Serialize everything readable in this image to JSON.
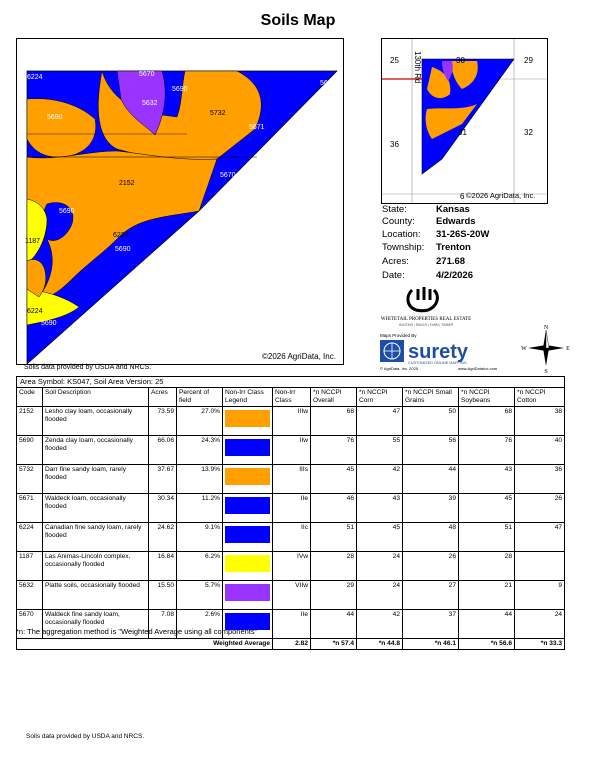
{
  "title": "Soils Map",
  "map": {
    "copyright": "©2026 AgriData, Inc.",
    "source": "Soils data provided by USDA and NRCS.",
    "labels": [
      "6224",
      "5670",
      "5690",
      "5632",
      "5632",
      "5690",
      "5732",
      "5671",
      "2152",
      "5670",
      "5690",
      "1187",
      "6224",
      "5690",
      "6224",
      "5690"
    ]
  },
  "inset": {
    "copyright": "©2026 AgriData, Inc.",
    "sections": [
      "25",
      "30",
      "29",
      "36",
      "31",
      "32",
      "6"
    ],
    "road": "130th Rd"
  },
  "info": [
    {
      "label": "State:",
      "value": "Kansas"
    },
    {
      "label": "County:",
      "value": "Edwards"
    },
    {
      "label": "Location:",
      "value": "31-26S-20W"
    },
    {
      "label": "Township:",
      "value": "Trenton"
    },
    {
      "label": "Acres:",
      "value": "271.68"
    },
    {
      "label": "Date:",
      "value": "4/2/2026"
    }
  ],
  "logos": {
    "whitetail_name": "WHITETAIL PROPERTIES REAL ESTATE",
    "whitetail_sub": "HUNTING | RANCH | FARM | TIMBER",
    "maps_provided_by": "Maps Provided By",
    "surety": "surety",
    "surety_tagline": "CUSTOMIZED ONLINE MAPPING",
    "surety_copy": "© AgriData, Inc. 2025",
    "surety_url": "www.AgriDataInc.com"
  },
  "compass": {
    "n": "N",
    "s": "S",
    "e": "E",
    "w": "W"
  },
  "table": {
    "area_symbol": "Area Symbol: KS047, Soil Area Version: 25",
    "headers": [
      "Code",
      "Soil Description",
      "Acres",
      "Percent of field",
      "Non-Irr Class Legend",
      "Non-Irr Class",
      "*n NCCPI Overall",
      "*n NCCPI Corn",
      "*n NCCPI Small Grains",
      "*n NCCPI Soybeans",
      "*n NCCPI Cotton"
    ],
    "rows": [
      {
        "code": "2152",
        "desc": "Lesho clay loam, occasionally flooded",
        "acres": "73.59",
        "pct": "27.0%",
        "color": "#ff9f00",
        "cls": "IIIw",
        "overall": "68",
        "corn": "47",
        "grains": "50",
        "soy": "68",
        "cotton": "38"
      },
      {
        "code": "5690",
        "desc": "Zenda clay loam, occasionally flooded",
        "acres": "66.06",
        "pct": "24.3%",
        "color": "#0000ff",
        "cls": "IIw",
        "overall": "76",
        "corn": "55",
        "grains": "56",
        "soy": "76",
        "cotton": "40"
      },
      {
        "code": "5732",
        "desc": "Darr fine sandy loam, rarely flooded",
        "acres": "37.67",
        "pct": "13.9%",
        "color": "#ff9f00",
        "cls": "IIIs",
        "overall": "45",
        "corn": "42",
        "grains": "44",
        "soy": "43",
        "cotton": "36"
      },
      {
        "code": "5671",
        "desc": "Waldeck loam, occasionally flooded",
        "acres": "30.34",
        "pct": "11.2%",
        "color": "#0000ff",
        "cls": "IIe",
        "overall": "46",
        "corn": "43",
        "grains": "39",
        "soy": "45",
        "cotton": "26"
      },
      {
        "code": "6224",
        "desc": "Canadian fine sandy loam, rarely flooded",
        "acres": "24.62",
        "pct": "9.1%",
        "color": "#0000ff",
        "cls": "IIc",
        "overall": "51",
        "corn": "45",
        "grains": "48",
        "soy": "51",
        "cotton": "47"
      },
      {
        "code": "1187",
        "desc": "Las Animas-Lincoln complex, occasionally flooded",
        "acres": "16.84",
        "pct": "6.2%",
        "color": "#ffff00",
        "cls": "IVw",
        "overall": "28",
        "corn": "24",
        "grains": "26",
        "soy": "28",
        "cotton": ""
      },
      {
        "code": "5632",
        "desc": "Platte soils, occasionally flooded",
        "acres": "15.50",
        "pct": "5.7%",
        "color": "#9933ff",
        "cls": "VIIw",
        "overall": "29",
        "corn": "24",
        "grains": "27",
        "soy": "21",
        "cotton": "9"
      },
      {
        "code": "5670",
        "desc": "Waldeck fine sandy loam, occasionally flooded",
        "acres": "7.08",
        "pct": "2.6%",
        "color": "#0000ff",
        "cls": "IIe",
        "overall": "44",
        "corn": "42",
        "grains": "37",
        "soy": "44",
        "cotton": "24"
      }
    ],
    "total": {
      "label": "Weighted Average",
      "cls": "2.82",
      "overall": "*n 57.4",
      "corn": "*n 44.8",
      "grains": "*n 46.1",
      "soy": "*n 56.6",
      "cotton": "*n 33.3"
    }
  },
  "note": "*n: The aggregation method is \"Weighted Average using all components\"",
  "footer_source": "Soils data provided by USDA and NRCS."
}
